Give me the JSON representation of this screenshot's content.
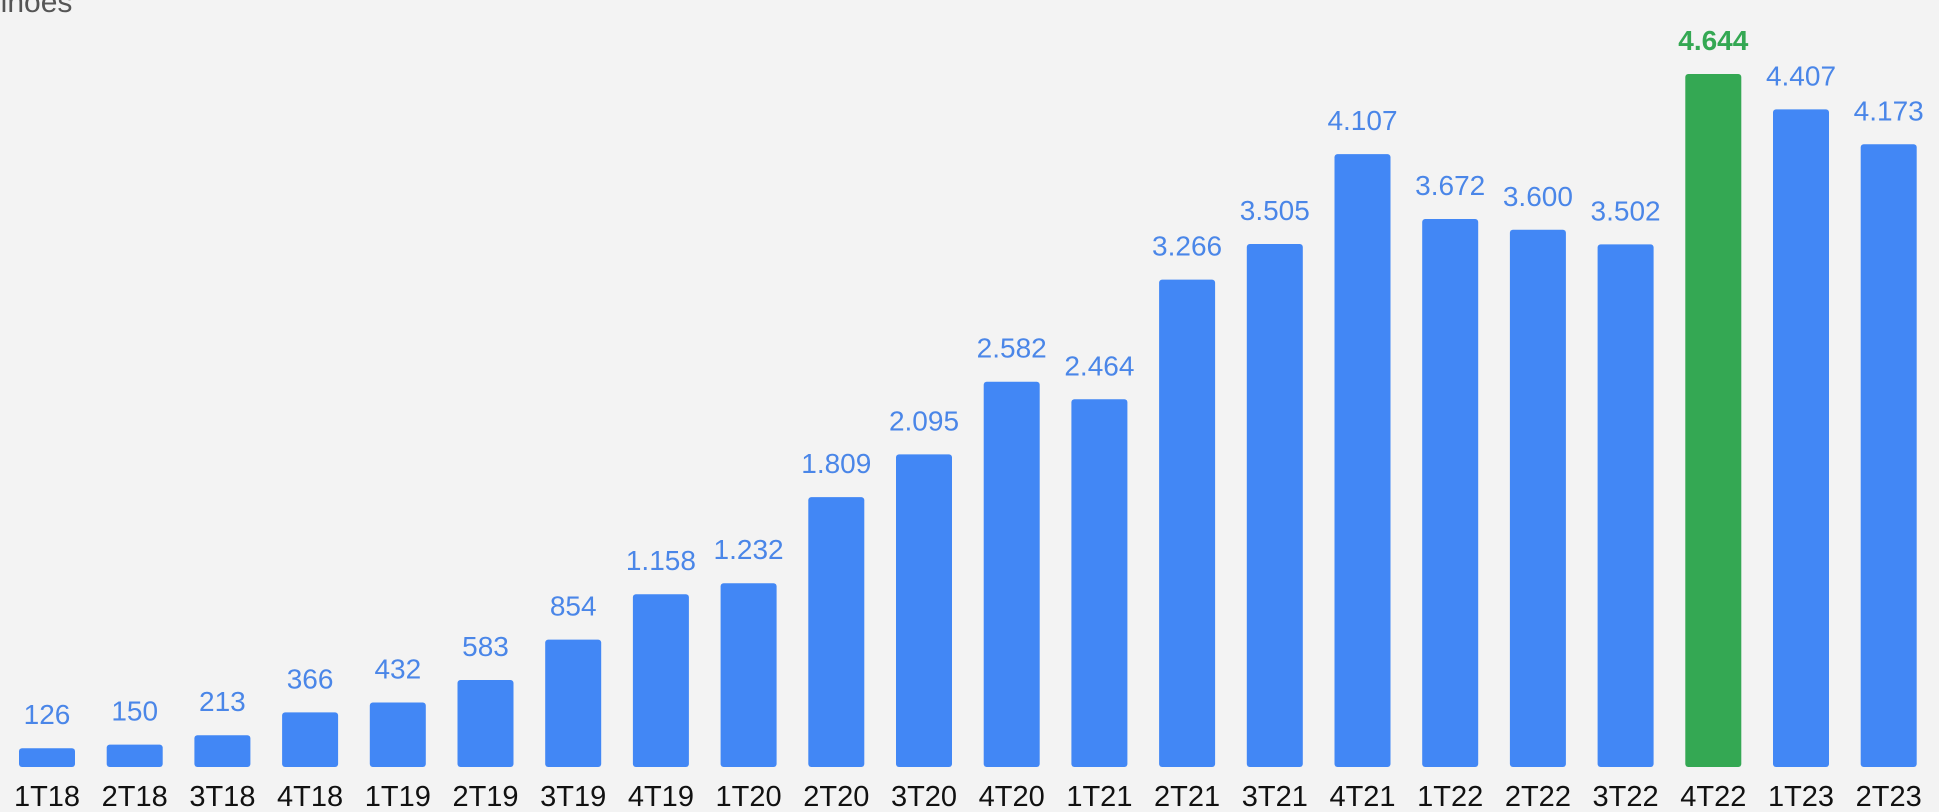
{
  "chart_data": {
    "type": "bar",
    "title": "",
    "unit_label": "ilhões",
    "xlabel": "",
    "ylabel": "",
    "categories": [
      "1T18",
      "2T18",
      "3T18",
      "4T18",
      "1T19",
      "2T19",
      "3T19",
      "4T19",
      "1T20",
      "2T20",
      "3T20",
      "4T20",
      "1T21",
      "2T21",
      "3T21",
      "4T21",
      "1T22",
      "2T22",
      "3T22",
      "4T22",
      "1T23",
      "2T23"
    ],
    "values": [
      126,
      150,
      213,
      366,
      432,
      583,
      854,
      1158,
      1232,
      1809,
      2095,
      2582,
      2464,
      3266,
      3505,
      4107,
      3672,
      3600,
      3502,
      4644,
      4407,
      4173
    ],
    "value_labels": [
      "126",
      "150",
      "213",
      "366",
      "432",
      "583",
      "854",
      "1.158",
      "1.232",
      "1.809",
      "2.095",
      "2.582",
      "2.464",
      "3.266",
      "3.505",
      "4.107",
      "3.672",
      "3.600",
      "3.502",
      "4.644",
      "4.407",
      "4.173"
    ],
    "ylim": [
      0,
      4644
    ],
    "grid": false,
    "highlight_category": "4T22",
    "colors": {
      "bar": "#4287f5",
      "highlight": "#34a853",
      "value_label": "#4a86e8",
      "highlight_label": "#34a853"
    }
  }
}
